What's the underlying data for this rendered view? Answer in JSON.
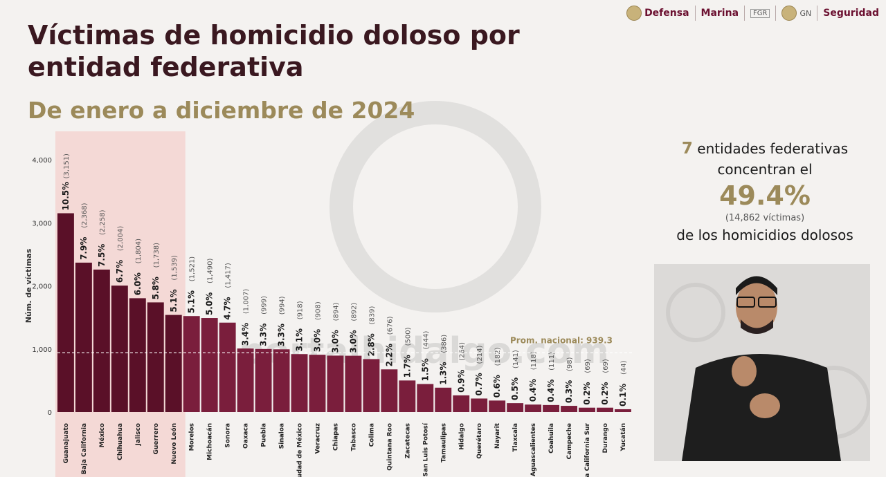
{
  "header": {
    "logos": [
      {
        "name": "Defensa"
      },
      {
        "name": "Marina"
      },
      {
        "name": "FGR"
      },
      {
        "name": "GN"
      },
      {
        "name": "Seguridad"
      }
    ]
  },
  "title": "Víctimas de homicidio doloso por entidad federativa",
  "subtitle": "De enero a diciembre de 2024",
  "side_info": {
    "count": "7",
    "line1_rest": "entidades federativas concentran el",
    "percent": "49.4%",
    "victims_note": "(14,862 víctimas)",
    "line3": "de los homicidios dolosos"
  },
  "watermark": "portalhidalgo.com",
  "colors": {
    "bar_dark": "#5a1028",
    "bar": "#7a1e3c",
    "highlight_band": "#f4d9d6",
    "gold": "#9c8a5a"
  },
  "chart_data": {
    "type": "bar",
    "ylabel": "Núm. de víctimas",
    "ylim": [
      0,
      4000
    ],
    "yticks": [
      0,
      1000,
      2000,
      3000,
      4000
    ],
    "ytick_labels": [
      "0",
      "1,000",
      "2,000",
      "3,000",
      "4,000"
    ],
    "highlight_count": 7,
    "average": {
      "value": 939.3,
      "label": "Prom. nacional: 939.3"
    },
    "categories": [
      "Guanajuato",
      "Baja California",
      "México",
      "Chihuahua",
      "Jalisco",
      "Guerrero",
      "Nuevo León",
      "Morelos",
      "Michoacán",
      "Sonora",
      "Oaxaca",
      "Puebla",
      "Sinaloa",
      "Ciudad de México",
      "Veracruz",
      "Chiapas",
      "Tabasco",
      "Colima",
      "Quintana Roo",
      "Zacatecas",
      "San Luis Potosí",
      "Tamaulipas",
      "Hidalgo",
      "Querétaro",
      "Nayarit",
      "Tlaxcala",
      "Aguascalientes",
      "Coahuila",
      "Campeche",
      "Baja California Sur",
      "Durango",
      "Yucatán"
    ],
    "values": [
      3151,
      2368,
      2258,
      2004,
      1804,
      1738,
      1539,
      1521,
      1490,
      1417,
      1007,
      999,
      994,
      918,
      908,
      894,
      892,
      839,
      676,
      500,
      444,
      386,
      264,
      214,
      182,
      141,
      118,
      111,
      98,
      69,
      69,
      44
    ],
    "value_labels": [
      "(3,151)",
      "(2,368)",
      "(2,258)",
      "(2,004)",
      "(1,804)",
      "(1,738)",
      "(1,539)",
      "(1,521)",
      "(1,490)",
      "(1,417)",
      "(1,007)",
      "(999)",
      "(994)",
      "(918)",
      "(908)",
      "(894)",
      "(892)",
      "(839)",
      "(676)",
      "(500)",
      "(444)",
      "(386)",
      "(264)",
      "(214)",
      "(182)",
      "(141)",
      "(118)",
      "(111)",
      "(98)",
      "(69)",
      "(69)",
      "(44)"
    ],
    "percent_labels": [
      "10.5%",
      "7.9%",
      "7.5%",
      "6.7%",
      "6.0%",
      "5.8%",
      "5.1%",
      "5.1%",
      "5.0%",
      "4.7%",
      "3.4%",
      "3.3%",
      "3.3%",
      "3.1%",
      "3.0%",
      "3.0%",
      "3.0%",
      "2.8%",
      "2.2%",
      "1.7%",
      "1.5%",
      "1.3%",
      "0.9%",
      "0.7%",
      "0.6%",
      "0.5%",
      "0.4%",
      "0.4%",
      "0.3%",
      "0.2%",
      "0.2%",
      "0.1%"
    ]
  }
}
